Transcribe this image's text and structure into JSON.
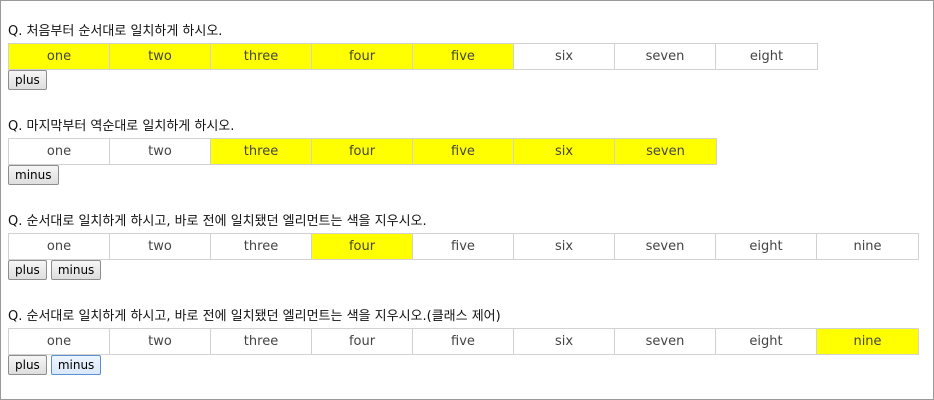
{
  "sections": [
    {
      "question": "Q. 처음부터 순서대로 일치하게 하시오.",
      "cells": [
        {
          "label": "one",
          "highlight": true
        },
        {
          "label": "two",
          "highlight": true
        },
        {
          "label": "three",
          "highlight": true
        },
        {
          "label": "four",
          "highlight": true
        },
        {
          "label": "five",
          "highlight": true
        },
        {
          "label": "six",
          "highlight": false
        },
        {
          "label": "seven",
          "highlight": false
        },
        {
          "label": "eight",
          "highlight": false
        }
      ],
      "buttons": [
        {
          "label": "plus",
          "focused": false
        }
      ]
    },
    {
      "question": "Q. 마지막부터 역순대로 일치하게 하시오.",
      "cells": [
        {
          "label": "one",
          "highlight": false
        },
        {
          "label": "two",
          "highlight": false
        },
        {
          "label": "three",
          "highlight": true
        },
        {
          "label": "four",
          "highlight": true
        },
        {
          "label": "five",
          "highlight": true
        },
        {
          "label": "six",
          "highlight": true
        },
        {
          "label": "seven",
          "highlight": true
        }
      ],
      "buttons": [
        {
          "label": "minus",
          "focused": false
        }
      ]
    },
    {
      "question": "Q. 순서대로 일치하게 하시고, 바로 전에 일치됐던 엘리먼트는 색을 지우시오.",
      "cells": [
        {
          "label": "one",
          "highlight": false
        },
        {
          "label": "two",
          "highlight": false
        },
        {
          "label": "three",
          "highlight": false
        },
        {
          "label": "four",
          "highlight": true
        },
        {
          "label": "five",
          "highlight": false
        },
        {
          "label": "six",
          "highlight": false
        },
        {
          "label": "seven",
          "highlight": false
        },
        {
          "label": "eight",
          "highlight": false
        },
        {
          "label": "nine",
          "highlight": false
        }
      ],
      "buttons": [
        {
          "label": "plus",
          "focused": false
        },
        {
          "label": "minus",
          "focused": false
        }
      ]
    },
    {
      "question": "Q. 순서대로 일치하게 하시고, 바로 전에 일치됐던 엘리먼트는 색을 지우시오.(클래스 제어)",
      "cells": [
        {
          "label": "one",
          "highlight": false
        },
        {
          "label": "two",
          "highlight": false
        },
        {
          "label": "three",
          "highlight": false
        },
        {
          "label": "four",
          "highlight": false
        },
        {
          "label": "five",
          "highlight": false
        },
        {
          "label": "six",
          "highlight": false
        },
        {
          "label": "seven",
          "highlight": false
        },
        {
          "label": "eight",
          "highlight": false
        },
        {
          "label": "nine",
          "highlight": true
        }
      ],
      "buttons": [
        {
          "label": "plus",
          "focused": false
        },
        {
          "label": "minus",
          "focused": true
        }
      ]
    }
  ],
  "colors": {
    "highlight": "#ffff00",
    "cell_border": "#d2d2d2"
  }
}
